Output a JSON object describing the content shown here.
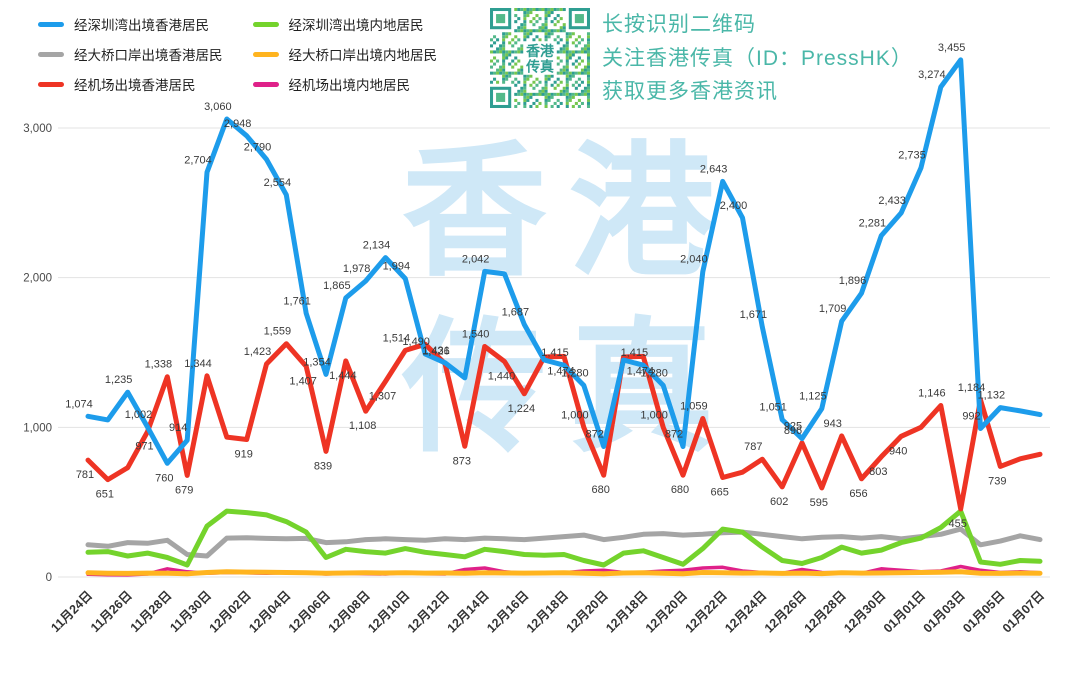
{
  "legend": {
    "items": [
      {
        "key": "shenzhen-bay-hk",
        "label": "经深圳湾出境香港居民",
        "color": "#1d9ceb"
      },
      {
        "key": "shenzhen-bay-mainland",
        "label": "经深圳湾出境内地居民",
        "color": "#74d32c"
      },
      {
        "key": "bridge-hk",
        "label": "经大桥口岸出境香港居民",
        "color": "#a5a5a5"
      },
      {
        "key": "bridge-mainland",
        "label": "经大桥口岸出境内地居民",
        "color": "#ffb41f"
      },
      {
        "key": "airport-hk",
        "label": "经机场出境香港居民",
        "color": "#ee3424"
      },
      {
        "key": "airport-mainland",
        "label": "经机场出境内地居民",
        "color": "#df2189"
      }
    ]
  },
  "qr_panel": {
    "lines": [
      "长按识别二维码",
      "关注香港传真（ID：PressHK）",
      "获取更多香港资讯"
    ],
    "text_color": "#4ab7a8",
    "qr_caption": [
      "香港",
      "传真"
    ],
    "qr_colors": [
      "#2f9e92",
      "#53b98a",
      "#76c74f"
    ]
  },
  "watermark": {
    "line1": "香港",
    "line2": "传真",
    "color": "#cfe8f7"
  },
  "chart_data": {
    "type": "line",
    "title": "",
    "xlabel": "",
    "ylabel": "",
    "ylim": [
      0,
      3200
    ],
    "grid": true,
    "legend_position": "top-left",
    "y_ticks": [
      "0",
      "1,000",
      "2,000",
      "3,000"
    ],
    "y_tick_values": [
      0,
      1000,
      2000,
      3000
    ],
    "x_tick_labels": [
      "11月24日",
      "11月26日",
      "11月28日",
      "11月30日",
      "12月02日",
      "12月04日",
      "12月06日",
      "12月08日",
      "12月10日",
      "12月12日",
      "12月14日",
      "12月16日",
      "12月18日",
      "12月20日",
      "12月18日",
      "12月20日",
      "12月22日",
      "12月24日",
      "12月26日",
      "12月28日",
      "12月30日",
      "01月01日",
      "01月03日",
      "01月05日",
      "01月07日"
    ],
    "dates": [
      "11月24日",
      "11月25日",
      "11月26日",
      "11月27日",
      "11月28日",
      "11月29日",
      "11月30日",
      "12月01日",
      "12月02日",
      "12月03日",
      "12月04日",
      "12月05日",
      "12月06日",
      "12月07日",
      "12月08日",
      "12月09日",
      "12月10日",
      "12月11日",
      "12月12日",
      "12月13日",
      "12月14日",
      "12月15日",
      "12月16日",
      "12月17日",
      "12月18日",
      "12月19日",
      "12月20日",
      "12月17日",
      "12月18日",
      "12月19日",
      "12月20日",
      "12月21日",
      "12月22日",
      "12月23日",
      "12月24日",
      "12月25日",
      "12月26日",
      "12月27日",
      "12月28日",
      "12月29日",
      "12月30日",
      "12月31日",
      "01月01日",
      "01月02日",
      "01月03日",
      "01月04日",
      "01月05日",
      "01月06日",
      "01月07日"
    ],
    "series": [
      {
        "key": "bridge-hk",
        "name": "经大桥口岸出境香港居民",
        "color": "#a5a5a5",
        "width": 5,
        "values": [
          215,
          205,
          230,
          225,
          245,
          150,
          140,
          260,
          262,
          258,
          255,
          258,
          230,
          235,
          250,
          255,
          250,
          245,
          255,
          250,
          260,
          255,
          250,
          260,
          270,
          280,
          250,
          265,
          285,
          290,
          280,
          285,
          295,
          300,
          285,
          270,
          255,
          265,
          270,
          260,
          270,
          255,
          270,
          285,
          320,
          215,
          240,
          275,
          250
        ],
        "labels": []
      },
      {
        "key": "shenzhen-bay-mainland",
        "name": "经深圳湾出境内地居民",
        "color": "#74d32c",
        "width": 5,
        "values": [
          165,
          170,
          140,
          160,
          130,
          80,
          340,
          440,
          430,
          415,
          370,
          300,
          130,
          185,
          170,
          160,
          190,
          165,
          150,
          135,
          185,
          170,
          150,
          145,
          150,
          110,
          80,
          160,
          175,
          130,
          85,
          190,
          320,
          300,
          200,
          110,
          90,
          130,
          200,
          160,
          180,
          230,
          260,
          330,
          440,
          100,
          85,
          110,
          105
        ],
        "labels": []
      },
      {
        "key": "airport-mainland",
        "name": "经机场出境内地居民",
        "color": "#df2189",
        "width": 3.5,
        "values": [
          18,
          15,
          14,
          20,
          55,
          35,
          25,
          30,
          28,
          25,
          30,
          28,
          20,
          25,
          22,
          20,
          28,
          22,
          20,
          50,
          60,
          35,
          25,
          30,
          28,
          40,
          45,
          30,
          32,
          40,
          45,
          60,
          65,
          40,
          30,
          25,
          50,
          30,
          28,
          25,
          55,
          45,
          35,
          40,
          70,
          45,
          30,
          35,
          28
        ],
        "labels": []
      },
      {
        "key": "bridge-mainland",
        "name": "经大桥口岸出境内地居民",
        "color": "#ffb41f",
        "width": 5,
        "values": [
          28,
          25,
          24,
          26,
          25,
          22,
          30,
          35,
          33,
          32,
          30,
          28,
          25,
          27,
          28,
          27,
          28,
          26,
          27,
          25,
          28,
          27,
          26,
          27,
          28,
          25,
          22,
          27,
          28,
          25,
          22,
          30,
          28,
          26,
          27,
          24,
          26,
          23,
          28,
          26,
          27,
          28,
          30,
          32,
          35,
          25,
          24,
          26,
          25
        ],
        "labels": []
      },
      {
        "key": "airport-hk",
        "name": "经机场出境香港居民",
        "color": "#ee3424",
        "width": 5,
        "values": [
          781,
          651,
          730,
          971,
          1338,
          679,
          1344,
          935,
          919,
          1423,
          1559,
          1407,
          839,
          1444,
          1108,
          1307,
          1514,
          1555,
          1426,
          873,
          1540,
          1440,
          1224,
          1470,
          1474,
          1000,
          680,
          1470,
          1474,
          1000,
          680,
          1059,
          665,
          700,
          787,
          602,
          896,
          595,
          943,
          656,
          803,
          940,
          1000,
          1146,
          455,
          1184,
          739,
          790,
          820
        ],
        "labels": [
          {
            "i": 0,
            "t": "781",
            "p": "b"
          },
          {
            "i": 1,
            "t": "651",
            "p": "b"
          },
          {
            "i": 3,
            "t": "971",
            "p": "b"
          },
          {
            "i": 4,
            "t": "1,338",
            "p": "a"
          },
          {
            "i": 5,
            "t": "679",
            "p": "b"
          },
          {
            "i": 6,
            "t": "1,344",
            "p": "a"
          },
          {
            "i": 8,
            "t": "919",
            "p": "b"
          },
          {
            "i": 9,
            "t": "1,423",
            "p": "a"
          },
          {
            "i": 10,
            "t": "1,559",
            "p": "a"
          },
          {
            "i": 11,
            "t": "1,407",
            "p": "b"
          },
          {
            "i": 12,
            "t": "839",
            "p": "b"
          },
          {
            "i": 13,
            "t": "1,444",
            "p": "b"
          },
          {
            "i": 14,
            "t": "1,108",
            "p": "b"
          },
          {
            "i": 15,
            "t": "1,307",
            "p": "b"
          },
          {
            "i": 16,
            "t": "1,514",
            "p": "a"
          },
          {
            "i": 18,
            "t": "1,426",
            "p": "a"
          },
          {
            "i": 19,
            "t": "873",
            "p": "b"
          },
          {
            "i": 20,
            "t": "1,540",
            "p": "a"
          },
          {
            "i": 21,
            "t": "1,440",
            "p": "b"
          },
          {
            "i": 22,
            "t": "1,224",
            "p": "b"
          },
          {
            "i": 24,
            "t": "1,474",
            "p": "b"
          },
          {
            "i": 25,
            "t": "1,000",
            "p": "a"
          },
          {
            "i": 26,
            "t": "680",
            "p": "b"
          },
          {
            "i": 28,
            "t": "1,474",
            "p": "b"
          },
          {
            "i": 29,
            "t": "1,000",
            "p": "a"
          },
          {
            "i": 30,
            "t": "680",
            "p": "b"
          },
          {
            "i": 31,
            "t": "1,059",
            "p": "a"
          },
          {
            "i": 32,
            "t": "665",
            "p": "b"
          },
          {
            "i": 34,
            "t": "787",
            "p": "a"
          },
          {
            "i": 35,
            "t": "602",
            "p": "b"
          },
          {
            "i": 36,
            "t": "896",
            "p": "a"
          },
          {
            "i": 37,
            "t": "595",
            "p": "b"
          },
          {
            "i": 38,
            "t": "943",
            "p": "a"
          },
          {
            "i": 39,
            "t": "656",
            "p": "b"
          },
          {
            "i": 40,
            "t": "803",
            "p": "b"
          },
          {
            "i": 41,
            "t": "940",
            "p": "b"
          },
          {
            "i": 43,
            "t": "1,146",
            "p": "a"
          },
          {
            "i": 44,
            "t": "455",
            "p": "b"
          },
          {
            "i": 45,
            "t": "1,184",
            "p": "a"
          },
          {
            "i": 46,
            "t": "739",
            "p": "b"
          }
        ]
      },
      {
        "key": "shenzhen-bay-hk",
        "name": "经深圳湾出境香港居民",
        "color": "#1d9ceb",
        "width": 5,
        "values": [
          1074,
          1050,
          1235,
          1002,
          760,
          914,
          2704,
          3060,
          2948,
          2790,
          2554,
          1761,
          1354,
          1865,
          1978,
          2134,
          1994,
          1490,
          1431,
          1330,
          2042,
          2025,
          1687,
          1450,
          1415,
          1280,
          872,
          1450,
          1415,
          1280,
          872,
          2040,
          2643,
          2400,
          1671,
          1051,
          925,
          1125,
          1709,
          1896,
          2281,
          2433,
          2735,
          3274,
          3455,
          992,
          1132,
          1110,
          1085
        ],
        "labels": [
          {
            "i": 0,
            "t": "1,074",
            "p": "a"
          },
          {
            "i": 2,
            "t": "1,235",
            "p": "a"
          },
          {
            "i": 3,
            "t": "1,002",
            "p": "a"
          },
          {
            "i": 4,
            "t": "760",
            "p": "b"
          },
          {
            "i": 5,
            "t": "914",
            "p": "a"
          },
          {
            "i": 6,
            "t": "2,704",
            "p": "a"
          },
          {
            "i": 7,
            "t": "3,060",
            "p": "a"
          },
          {
            "i": 8,
            "t": "2,948",
            "p": "a"
          },
          {
            "i": 9,
            "t": "2,790",
            "p": "a"
          },
          {
            "i": 10,
            "t": "2,554",
            "p": "a"
          },
          {
            "i": 11,
            "t": "1,761",
            "p": "a"
          },
          {
            "i": 12,
            "t": "1,354",
            "p": "a"
          },
          {
            "i": 13,
            "t": "1,865",
            "p": "a"
          },
          {
            "i": 14,
            "t": "1,978",
            "p": "a"
          },
          {
            "i": 15,
            "t": "2,134",
            "p": "a"
          },
          {
            "i": 16,
            "t": "1,994",
            "p": "a"
          },
          {
            "i": 17,
            "t": "1,490",
            "p": "a"
          },
          {
            "i": 18,
            "t": "1,431",
            "p": "a"
          },
          {
            "i": 20,
            "t": "2,042",
            "p": "a"
          },
          {
            "i": 22,
            "t": "1,687",
            "p": "a"
          },
          {
            "i": 24,
            "t": "1,415",
            "p": "a"
          },
          {
            "i": 25,
            "t": "1,280",
            "p": "a"
          },
          {
            "i": 26,
            "t": "872",
            "p": "a"
          },
          {
            "i": 28,
            "t": "1,415",
            "p": "a"
          },
          {
            "i": 29,
            "t": "1,280",
            "p": "a"
          },
          {
            "i": 30,
            "t": "872",
            "p": "a"
          },
          {
            "i": 31,
            "t": "2,040",
            "p": "a"
          },
          {
            "i": 32,
            "t": "2,643",
            "p": "a"
          },
          {
            "i": 33,
            "t": "2,400",
            "p": "a"
          },
          {
            "i": 34,
            "t": "1,671",
            "p": "a"
          },
          {
            "i": 35,
            "t": "1,051",
            "p": "a"
          },
          {
            "i": 36,
            "t": "925",
            "p": "a"
          },
          {
            "i": 37,
            "t": "1,125",
            "p": "a"
          },
          {
            "i": 38,
            "t": "1,709",
            "p": "a"
          },
          {
            "i": 39,
            "t": "1,896",
            "p": "a"
          },
          {
            "i": 40,
            "t": "2,281",
            "p": "a"
          },
          {
            "i": 41,
            "t": "2,433",
            "p": "a"
          },
          {
            "i": 42,
            "t": "2,735",
            "p": "a"
          },
          {
            "i": 43,
            "t": "3,274",
            "p": "a"
          },
          {
            "i": 44,
            "t": "3,455",
            "p": "a"
          },
          {
            "i": 45,
            "t": "992",
            "p": "a"
          },
          {
            "i": 46,
            "t": "1,132",
            "p": "a"
          }
        ]
      }
    ]
  }
}
